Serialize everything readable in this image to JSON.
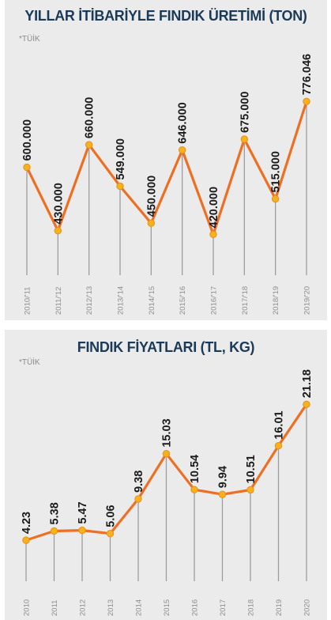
{
  "chart_data": [
    {
      "type": "line",
      "title": "YILLAR İTİBARİYLE FINDIK ÜRETİMİ (TON)",
      "source": "*TÜİK",
      "categories": [
        "2010/'11",
        "2011/'12",
        "2012/'13",
        "2013/'14",
        "2014/'15",
        "2015/'16",
        "2016/'17",
        "2017/'18",
        "2018/'19",
        "2019/'20"
      ],
      "values": [
        600000,
        430000,
        660000,
        549000,
        450000,
        646000,
        420000,
        675000,
        515000,
        776046
      ],
      "value_labels": [
        "600.000",
        "430.000",
        "660.000",
        "549.000",
        "450.000",
        "646.000",
        "420.000",
        "675.000",
        "515.000",
        "776.046"
      ],
      "ylim": [
        300000,
        800000
      ],
      "colors": {
        "line": "#ee6f22",
        "marker": "#f5b21d",
        "title": "#1b3a57",
        "background": "#ebebeb"
      }
    },
    {
      "type": "line",
      "title": "FINDIK FİYATLARI (TL, KG)",
      "source": "*TÜİK",
      "categories": [
        "2010",
        "2011",
        "2012",
        "2013",
        "2014",
        "2015",
        "2016",
        "2017",
        "2018",
        "2019",
        "2020"
      ],
      "values": [
        4.23,
        5.38,
        5.47,
        5.06,
        9.38,
        15.03,
        10.54,
        9.94,
        10.51,
        16.01,
        21.18
      ],
      "value_labels": [
        "4.23",
        "5.38",
        "5.47",
        "5.06",
        "9.38",
        "15.03",
        "10.54",
        "9.94",
        "10.51",
        "16.01",
        "21.18"
      ],
      "ylim": [
        0,
        22
      ],
      "colors": {
        "line": "#ee6f22",
        "marker": "#f5b21d",
        "title": "#1b3a57",
        "background": "#ebebeb"
      }
    }
  ]
}
